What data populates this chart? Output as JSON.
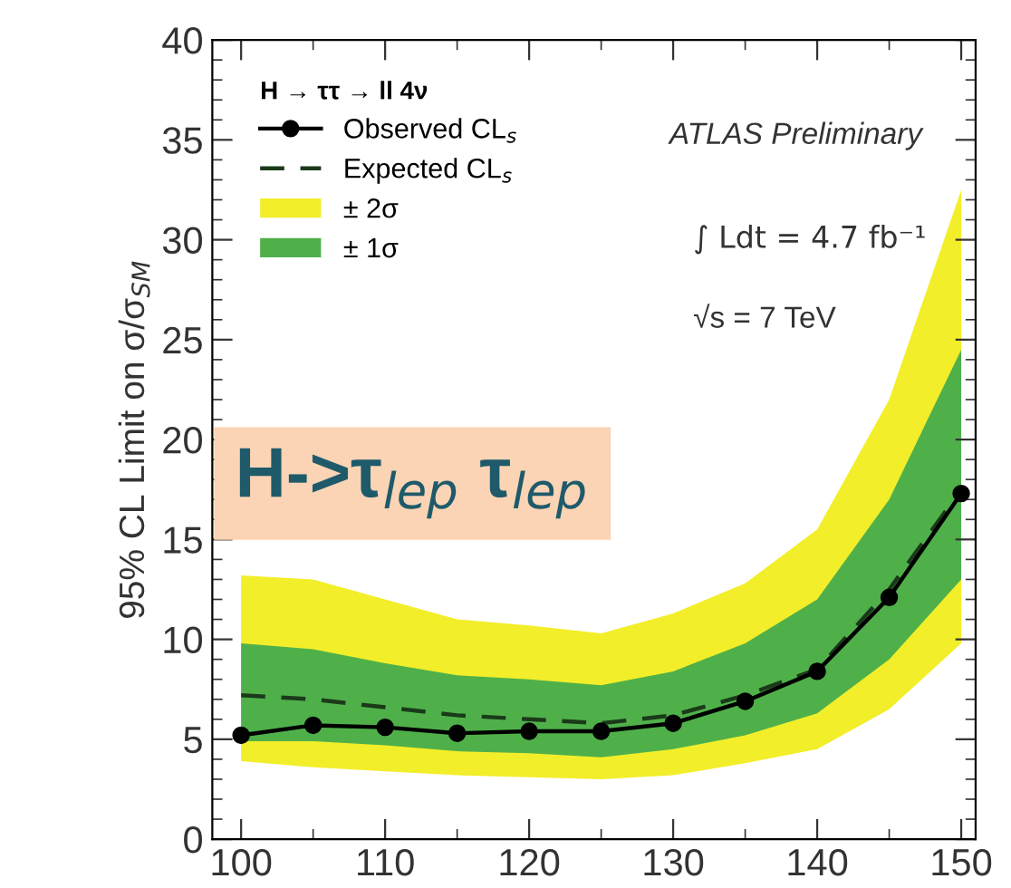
{
  "chart_data": {
    "type": "line",
    "ylabel": "95% CL Limit on σ/σ$_{SM}$",
    "legend_title": "H → ττ → ll 4ν",
    "x": [
      100,
      105,
      110,
      115,
      120,
      125,
      130,
      135,
      140,
      145,
      150
    ],
    "series": [
      {
        "name": "± 2σ",
        "type": "area",
        "color": "#f2ee2a",
        "values": [
          null,
          null,
          null,
          null,
          null,
          null,
          null,
          null,
          null,
          null,
          null
        ],
        "lower": [
          3.9,
          3.6,
          3.4,
          3.2,
          3.1,
          3.0,
          3.2,
          3.8,
          4.5,
          6.5,
          9.8
        ],
        "upper": [
          13.2,
          13.0,
          12.0,
          11.0,
          10.7,
          10.3,
          11.3,
          12.8,
          15.5,
          22.0,
          32.5
        ]
      },
      {
        "name": "± 1σ",
        "type": "area",
        "color": "#4fb04a",
        "values": [
          null,
          null,
          null,
          null,
          null,
          null,
          null,
          null,
          null,
          null,
          null
        ],
        "lower": [
          4.9,
          4.9,
          4.7,
          4.4,
          4.3,
          4.1,
          4.5,
          5.2,
          6.3,
          9.0,
          13.0
        ],
        "upper": [
          9.8,
          9.5,
          8.8,
          8.2,
          8.0,
          7.7,
          8.4,
          9.8,
          12.0,
          17.0,
          24.5
        ]
      },
      {
        "name": "Expected CL$_{s}$",
        "color": "#1a3a1a",
        "line_style": "dashed",
        "marker": "none",
        "values": [
          7.2,
          7.0,
          6.6,
          6.2,
          6.0,
          5.8,
          6.2,
          7.2,
          8.5,
          12.5,
          17.5
        ]
      },
      {
        "name": "Observed CL$_{s}$",
        "color": "#000000",
        "line_style": "solid",
        "marker": "circle",
        "values": [
          5.2,
          5.7,
          5.6,
          5.3,
          5.4,
          5.4,
          5.8,
          6.9,
          8.4,
          12.1,
          17.3
        ]
      }
    ],
    "xlim": [
      98,
      151
    ],
    "xticks": [
      100,
      110,
      120,
      130,
      140,
      150
    ],
    "ylim": [
      0,
      40
    ],
    "yticks": [
      0,
      5,
      10,
      15,
      20,
      25,
      30,
      35,
      40
    ],
    "legend": "top left",
    "annotations": [
      "ATLAS Preliminary",
      "∫ Ldt = 4.7 fb⁻¹",
      "√s = 7 TeV",
      "H->τ$_{lep}$ τ$_{lep}$"
    ]
  }
}
